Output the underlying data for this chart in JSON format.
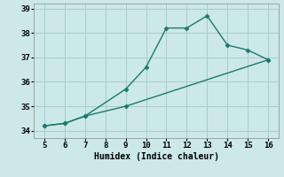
{
  "xlabel": "Humidex (Indice chaleur)",
  "background_color": "#cce8e8",
  "grid_color": "#aacccc",
  "line_color": "#1a7a6e",
  "xlim": [
    4.5,
    16.5
  ],
  "ylim": [
    33.7,
    39.2
  ],
  "xticks": [
    5,
    6,
    7,
    8,
    9,
    10,
    11,
    12,
    13,
    14,
    15,
    16
  ],
  "yticks": [
    34,
    35,
    36,
    37,
    38,
    39
  ],
  "curve1_x": [
    5,
    6,
    7,
    9,
    10,
    11,
    12,
    13,
    14,
    15,
    16
  ],
  "curve1_y": [
    34.2,
    34.3,
    34.6,
    35.7,
    36.6,
    38.2,
    38.2,
    38.7,
    37.5,
    37.3,
    36.9
  ],
  "curve2_x": [
    5,
    6,
    7,
    9,
    16
  ],
  "curve2_y": [
    34.2,
    34.3,
    34.6,
    35.0,
    36.9
  ],
  "marker_size": 2.5,
  "line_width": 1.0,
  "font_family": "monospace",
  "tick_fontsize": 6.5,
  "xlabel_fontsize": 7.0
}
